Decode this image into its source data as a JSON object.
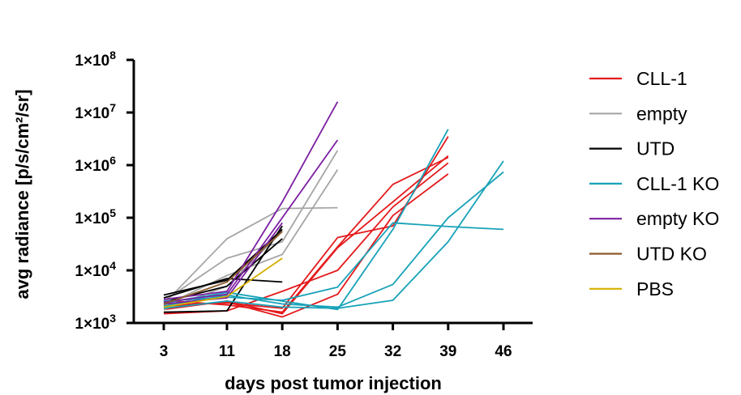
{
  "chart_data": {
    "type": "line",
    "xlabel": "days post tumor injection",
    "ylabel": "avg radiance [p/s/cm²/sr]",
    "x_ticks": [
      3,
      11,
      18,
      25,
      32,
      39,
      46
    ],
    "y_scale": "log",
    "ylim": [
      1000,
      100000000
    ],
    "y_ticks": [
      {
        "value": 1000,
        "mantissa": "1×10",
        "exp": "3"
      },
      {
        "value": 10000,
        "mantissa": "1×10",
        "exp": "4"
      },
      {
        "value": 100000,
        "mantissa": "1×10",
        "exp": "5"
      },
      {
        "value": 1000000,
        "mantissa": "1×10",
        "exp": "6"
      },
      {
        "value": 10000000,
        "mantissa": "1×10",
        "exp": "7"
      },
      {
        "value": 100000000,
        "mantissa": "1×10",
        "exp": "8"
      }
    ],
    "legend_position": "right",
    "grid": false,
    "series": [
      {
        "name": "CLL-1",
        "color": "#e41a1c",
        "lines": [
          {
            "x": [
              3,
              11,
              18,
              25,
              32,
              39
            ],
            "y": [
              2200,
              2400,
              1900,
              42000,
              70000,
              3500000
            ]
          },
          {
            "x": [
              3,
              11,
              18,
              25,
              32,
              39
            ],
            "y": [
              2700,
              2200,
              1600,
              28000,
              430000,
              1400000
            ]
          },
          {
            "x": [
              3,
              11,
              18,
              25,
              32,
              39
            ],
            "y": [
              1500,
              1700,
              4000,
              10000,
              160000,
              1100000
            ]
          },
          {
            "x": [
              3,
              11,
              18,
              25,
              32,
              39
            ],
            "y": [
              2000,
              2500,
              1300,
              3500,
              110000,
              680000
            ]
          },
          {
            "x": [
              3,
              11,
              18,
              25,
              32,
              39
            ],
            "y": [
              1800,
              2600,
              1500,
              27000,
              200000,
              1500000
            ]
          }
        ]
      },
      {
        "name": "empty",
        "color": "#a6a6a6",
        "lines": [
          {
            "x": [
              3,
              11,
              18,
              25
            ],
            "y": [
              2300,
              40000,
              150000,
              155000
            ]
          },
          {
            "x": [
              3,
              11,
              18,
              25
            ],
            "y": [
              2600,
              17000,
              35000,
              1900000
            ]
          },
          {
            "x": [
              3,
              11,
              18,
              25
            ],
            "y": [
              2100,
              8000,
              20000,
              820000
            ]
          },
          {
            "x": [
              3,
              11,
              18
            ],
            "y": [
              1800,
              5000,
              55000
            ]
          }
        ]
      },
      {
        "name": "UTD",
        "color": "#000000",
        "lines": [
          {
            "x": [
              3,
              11,
              18
            ],
            "y": [
              3400,
              6500,
              60000
            ]
          },
          {
            "x": [
              3,
              11,
              18
            ],
            "y": [
              3000,
              7000,
              6000
            ]
          },
          {
            "x": [
              3,
              11,
              18
            ],
            "y": [
              1600,
              1700,
              70000
            ]
          },
          {
            "x": [
              3,
              11,
              18
            ],
            "y": [
              2500,
              5000,
              40000
            ]
          }
        ]
      },
      {
        "name": "CLL-1 KO",
        "color": "#17a2b8",
        "lines": [
          {
            "x": [
              3,
              11,
              18,
              25,
              32,
              39
            ],
            "y": [
              2400,
              3800,
              2600,
              1800,
              60000,
              4800000
            ]
          },
          {
            "x": [
              3,
              11,
              18,
              25,
              32,
              39,
              46
            ],
            "y": [
              2100,
              3400,
              2300,
              2000,
              5400,
              100000,
              740000
            ]
          },
          {
            "x": [
              3,
              11,
              18,
              25,
              32,
              39,
              46
            ],
            "y": [
              2600,
              3100,
              2700,
              4800,
              80000,
              68000,
              60000
            ]
          },
          {
            "x": [
              3,
              11,
              18,
              25,
              32,
              39,
              46
            ],
            "y": [
              1900,
              2600,
              2000,
              1900,
              2700,
              35000,
              1200000
            ]
          }
        ]
      },
      {
        "name": "empty KO",
        "color": "#7b1fa2",
        "lines": [
          {
            "x": [
              3,
              11,
              18,
              25
            ],
            "y": [
              2800,
              4000,
              200000,
              16000000
            ]
          },
          {
            "x": [
              3,
              11,
              18,
              25
            ],
            "y": [
              2500,
              3500,
              100000,
              3000000
            ]
          },
          {
            "x": [
              3,
              11,
              18
            ],
            "y": [
              2300,
              3000,
              80000
            ]
          }
        ]
      },
      {
        "name": "UTD KO",
        "color": "#8b5a2b",
        "lines": [
          {
            "x": [
              3,
              11,
              18
            ],
            "y": [
              2300,
              6000,
              55000
            ]
          }
        ]
      },
      {
        "name": "PBS",
        "color": "#d4b000",
        "lines": [
          {
            "x": [
              3,
              11,
              18
            ],
            "y": [
              2000,
              3200,
              17000
            ]
          }
        ]
      }
    ]
  }
}
